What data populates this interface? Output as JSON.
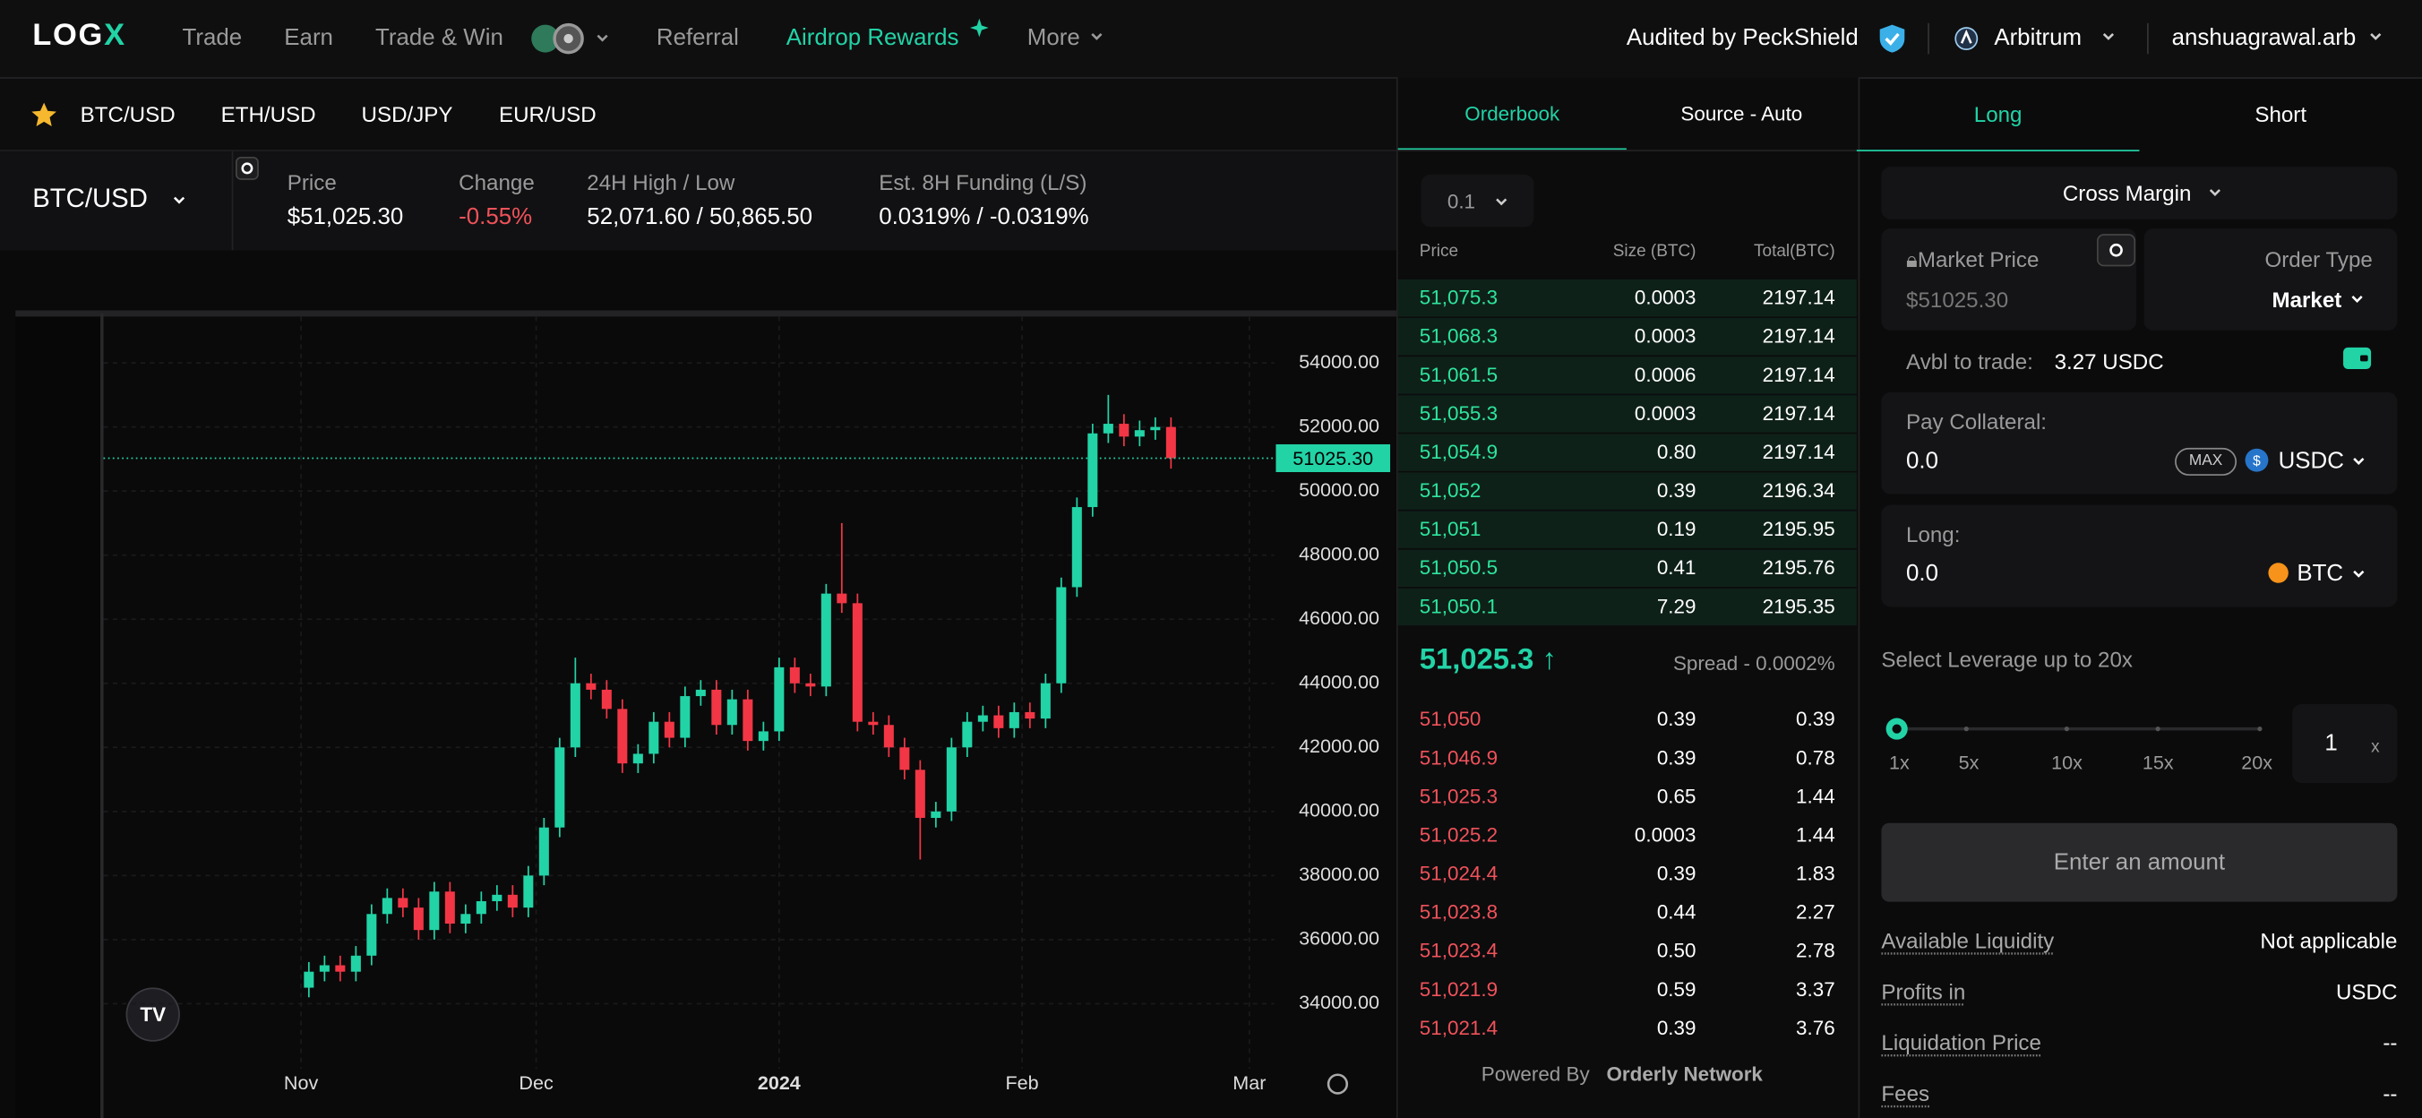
{
  "nav": {
    "logo": "LOG",
    "logo_mark": "X",
    "items": [
      "Trade",
      "Earn",
      "Trade & Win",
      "Referral",
      "Airdrop Rewards",
      "More"
    ],
    "audit": "Audited by PeckShield",
    "network": "Arbitrum",
    "account": "anshuagrawal.arb"
  },
  "tickers": [
    "BTC/USD",
    "ETH/USD",
    "USD/JPY",
    "EUR/USD"
  ],
  "market": {
    "pair": "BTC/USD",
    "stats": [
      {
        "label": "Price",
        "value": "$51,025.30"
      },
      {
        "label": "Change",
        "value": "-0.55%"
      },
      {
        "label": "24H High / Low",
        "value": "52,071.60 / 50,865.50"
      },
      {
        "label": "Est. 8H Funding (L/S)",
        "value": "0.0319% / -0.0319%"
      }
    ]
  },
  "chart_data": {
    "type": "candlestick",
    "open": [
      34500,
      35000,
      35200,
      35000,
      35500,
      36800,
      37300,
      37000,
      36300,
      37500,
      36500,
      36800,
      37200,
      37400,
      37000,
      38000,
      39500,
      42000,
      44000,
      43800,
      43200,
      41500,
      41800,
      42800,
      42300,
      43600,
      43800,
      42700,
      43500,
      42200,
      42500,
      44500,
      44000,
      43900,
      46800,
      46500,
      42800,
      42700,
      42000,
      41300,
      39800,
      40000,
      42000,
      42800,
      43000,
      42600,
      43100,
      42900,
      44000,
      47000,
      49500,
      51800,
      52100,
      51700,
      51900,
      52000
    ],
    "high": [
      35300,
      35500,
      35500,
      35800,
      37100,
      37600,
      37600,
      37300,
      37800,
      37800,
      37100,
      37500,
      37700,
      37700,
      38300,
      39800,
      42300,
      44800,
      44300,
      44100,
      43500,
      42100,
      43100,
      43100,
      43900,
      44100,
      44100,
      43800,
      43800,
      42800,
      44800,
      44800,
      44300,
      47100,
      49000,
      46800,
      43100,
      43000,
      42300,
      41600,
      40300,
      42300,
      43100,
      43300,
      43300,
      43400,
      43400,
      44300,
      47300,
      49800,
      52100,
      53000,
      52400,
      52200,
      52300,
      52300
    ],
    "low": [
      34200,
      34700,
      34700,
      34700,
      35200,
      36500,
      36700,
      36000,
      36000,
      36200,
      36200,
      36500,
      36900,
      36700,
      36700,
      37700,
      39200,
      41700,
      43500,
      42900,
      41200,
      41200,
      41500,
      42000,
      42000,
      43300,
      42400,
      42400,
      41900,
      41900,
      42200,
      43700,
      43600,
      43600,
      46200,
      42500,
      42400,
      41700,
      41000,
      38500,
      39500,
      39700,
      41700,
      42500,
      42300,
      42300,
      42600,
      42600,
      43700,
      46700,
      49200,
      51500,
      51400,
      51400,
      51600,
      50700
    ],
    "close": [
      35000,
      35200,
      35000,
      35500,
      36800,
      37300,
      37000,
      36300,
      37500,
      36500,
      36800,
      37200,
      37400,
      37000,
      38000,
      39500,
      42000,
      44000,
      43800,
      43200,
      41500,
      41800,
      42800,
      42300,
      43600,
      43800,
      42700,
      43500,
      42200,
      42500,
      44500,
      44000,
      43900,
      46800,
      46500,
      42800,
      42700,
      42000,
      41300,
      39800,
      40000,
      42000,
      42800,
      43000,
      42600,
      43100,
      42900,
      44000,
      47000,
      49500,
      51800,
      52100,
      51700,
      51900,
      52000,
      51025.3
    ],
    "up_color": "#22d3a6",
    "down_color": "#f23645",
    "xlim": [
      -13.3,
      61.1
    ],
    "xticks": [
      {
        "value": -0.5,
        "label": "Nov"
      },
      {
        "value": 14.5,
        "label": "Dec"
      },
      {
        "value": 30,
        "label": "2024"
      },
      {
        "value": 45.5,
        "label": "Feb"
      },
      {
        "value": 60,
        "label": "Mar"
      }
    ],
    "ylim": [
      32072,
      55446
    ],
    "yticks": [
      {
        "value": 34000,
        "label": "34000.00"
      },
      {
        "value": 36000,
        "label": "36000.00"
      },
      {
        "value": 38000,
        "label": "38000.00"
      },
      {
        "value": 40000,
        "label": "40000.00"
      },
      {
        "value": 42000,
        "label": "42000.00"
      },
      {
        "value": 44000,
        "label": "44000.00"
      },
      {
        "value": 46000,
        "label": "46000.00"
      },
      {
        "value": 48000,
        "label": "48000.00"
      },
      {
        "value": 50000,
        "label": "50000.00"
      },
      {
        "value": 52000,
        "label": "52000.00"
      },
      {
        "value": 54000,
        "label": "54000.00"
      }
    ],
    "price_line": {
      "value": 51025.3,
      "label": "51025.30"
    },
    "grid": true
  },
  "orderbook": {
    "tabs": [
      "Orderbook",
      "Source - Auto"
    ],
    "tick": "0.1",
    "headers": [
      "Price",
      "Size (BTC)",
      "Total(BTC)"
    ],
    "asks": [
      [
        "51,075.3",
        "0.0003",
        "2197.14"
      ],
      [
        "51,068.3",
        "0.0003",
        "2197.14"
      ],
      [
        "51,061.5",
        "0.0006",
        "2197.14"
      ],
      [
        "51,055.3",
        "0.0003",
        "2197.14"
      ],
      [
        "51,054.9",
        "0.80",
        "2197.14"
      ],
      [
        "51,052",
        "0.39",
        "2196.34"
      ],
      [
        "51,051",
        "0.19",
        "2195.95"
      ],
      [
        "51,050.5",
        "0.41",
        "2195.76"
      ],
      [
        "51,050.1",
        "7.29",
        "2195.35"
      ]
    ],
    "last": "51,025.3",
    "spread": "Spread - 0.0002%",
    "bids": [
      [
        "51,050",
        "0.39",
        "0.39"
      ],
      [
        "51,046.9",
        "0.39",
        "0.78"
      ],
      [
        "51,025.3",
        "0.65",
        "1.44"
      ],
      [
        "51,025.2",
        "0.0003",
        "1.44"
      ],
      [
        "51,024.4",
        "0.39",
        "1.83"
      ],
      [
        "51,023.8",
        "0.44",
        "2.27"
      ],
      [
        "51,023.4",
        "0.50",
        "2.78"
      ],
      [
        "51,021.9",
        "0.59",
        "3.37"
      ],
      [
        "51,021.4",
        "0.39",
        "3.76"
      ]
    ],
    "powered": "Powered By",
    "provider": "Orderly Network"
  },
  "order": {
    "tabs": [
      "Long",
      "Short"
    ],
    "margin": "Cross Margin",
    "market_price_label": "Market Price",
    "currency": "$",
    "market_price": "51025.30",
    "order_type_label": "Order Type",
    "order_type": "Market",
    "avbl_label": "Avbl to trade:",
    "avbl": "3.27 USDC",
    "collateral_label": "Pay Collateral:",
    "collateral": "0.0",
    "max": "MAX",
    "collateral_token": "USDC",
    "long_label": "Long:",
    "long": "0.0",
    "long_token": "BTC",
    "leverage_label": "Select Leverage up to 20x",
    "leverage_marks": [
      "1x",
      "5x",
      "10x",
      "15x",
      "20x"
    ],
    "leverage": "1",
    "leverage_unit": "x",
    "button": "Enter an amount",
    "details": [
      [
        "Available Liquidity",
        "Not applicable"
      ],
      [
        "Profits in",
        "USDC"
      ],
      [
        "Liquidation Price",
        "--"
      ],
      [
        "Fees",
        "--"
      ]
    ]
  }
}
